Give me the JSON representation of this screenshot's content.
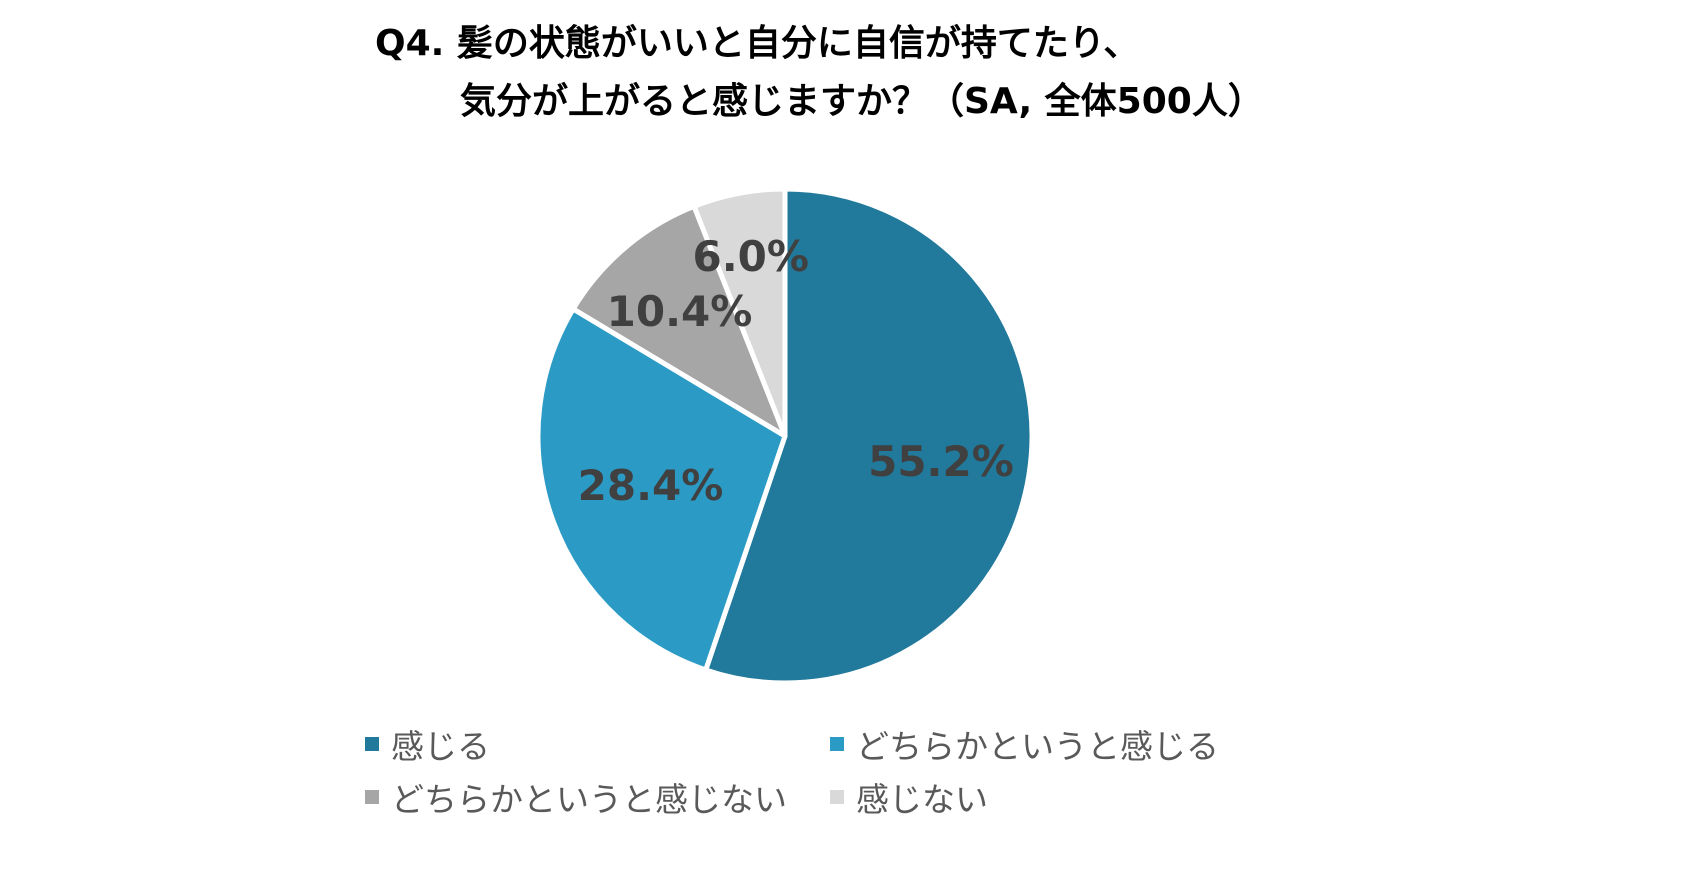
{
  "title": {
    "line1": "Q4. 髪の状態がいいと自分に自信が持てたり、",
    "line2": "気分が上がると感じますか？（SA, 全体500人）"
  },
  "chart_data": {
    "type": "pie",
    "title": "Q4. 髪の状態がいいと自分に自信が持てたり、気分が上がると感じますか？（SA, 全体500人）",
    "categories": [
      "感じる",
      "どちらかというと感じる",
      "どちらかというと感じない",
      "感じない"
    ],
    "values": [
      55.2,
      28.4,
      10.4,
      6.0
    ],
    "data_labels": [
      "55.2%",
      "28.4%",
      "10.4%",
      "6.0%"
    ],
    "colors": [
      "#21799B",
      "#2B9BC6",
      "#A6A6A6",
      "#D9D9D9"
    ],
    "start_angle": "12 o'clock",
    "direction": "clockwise",
    "legend_position": "bottom"
  }
}
